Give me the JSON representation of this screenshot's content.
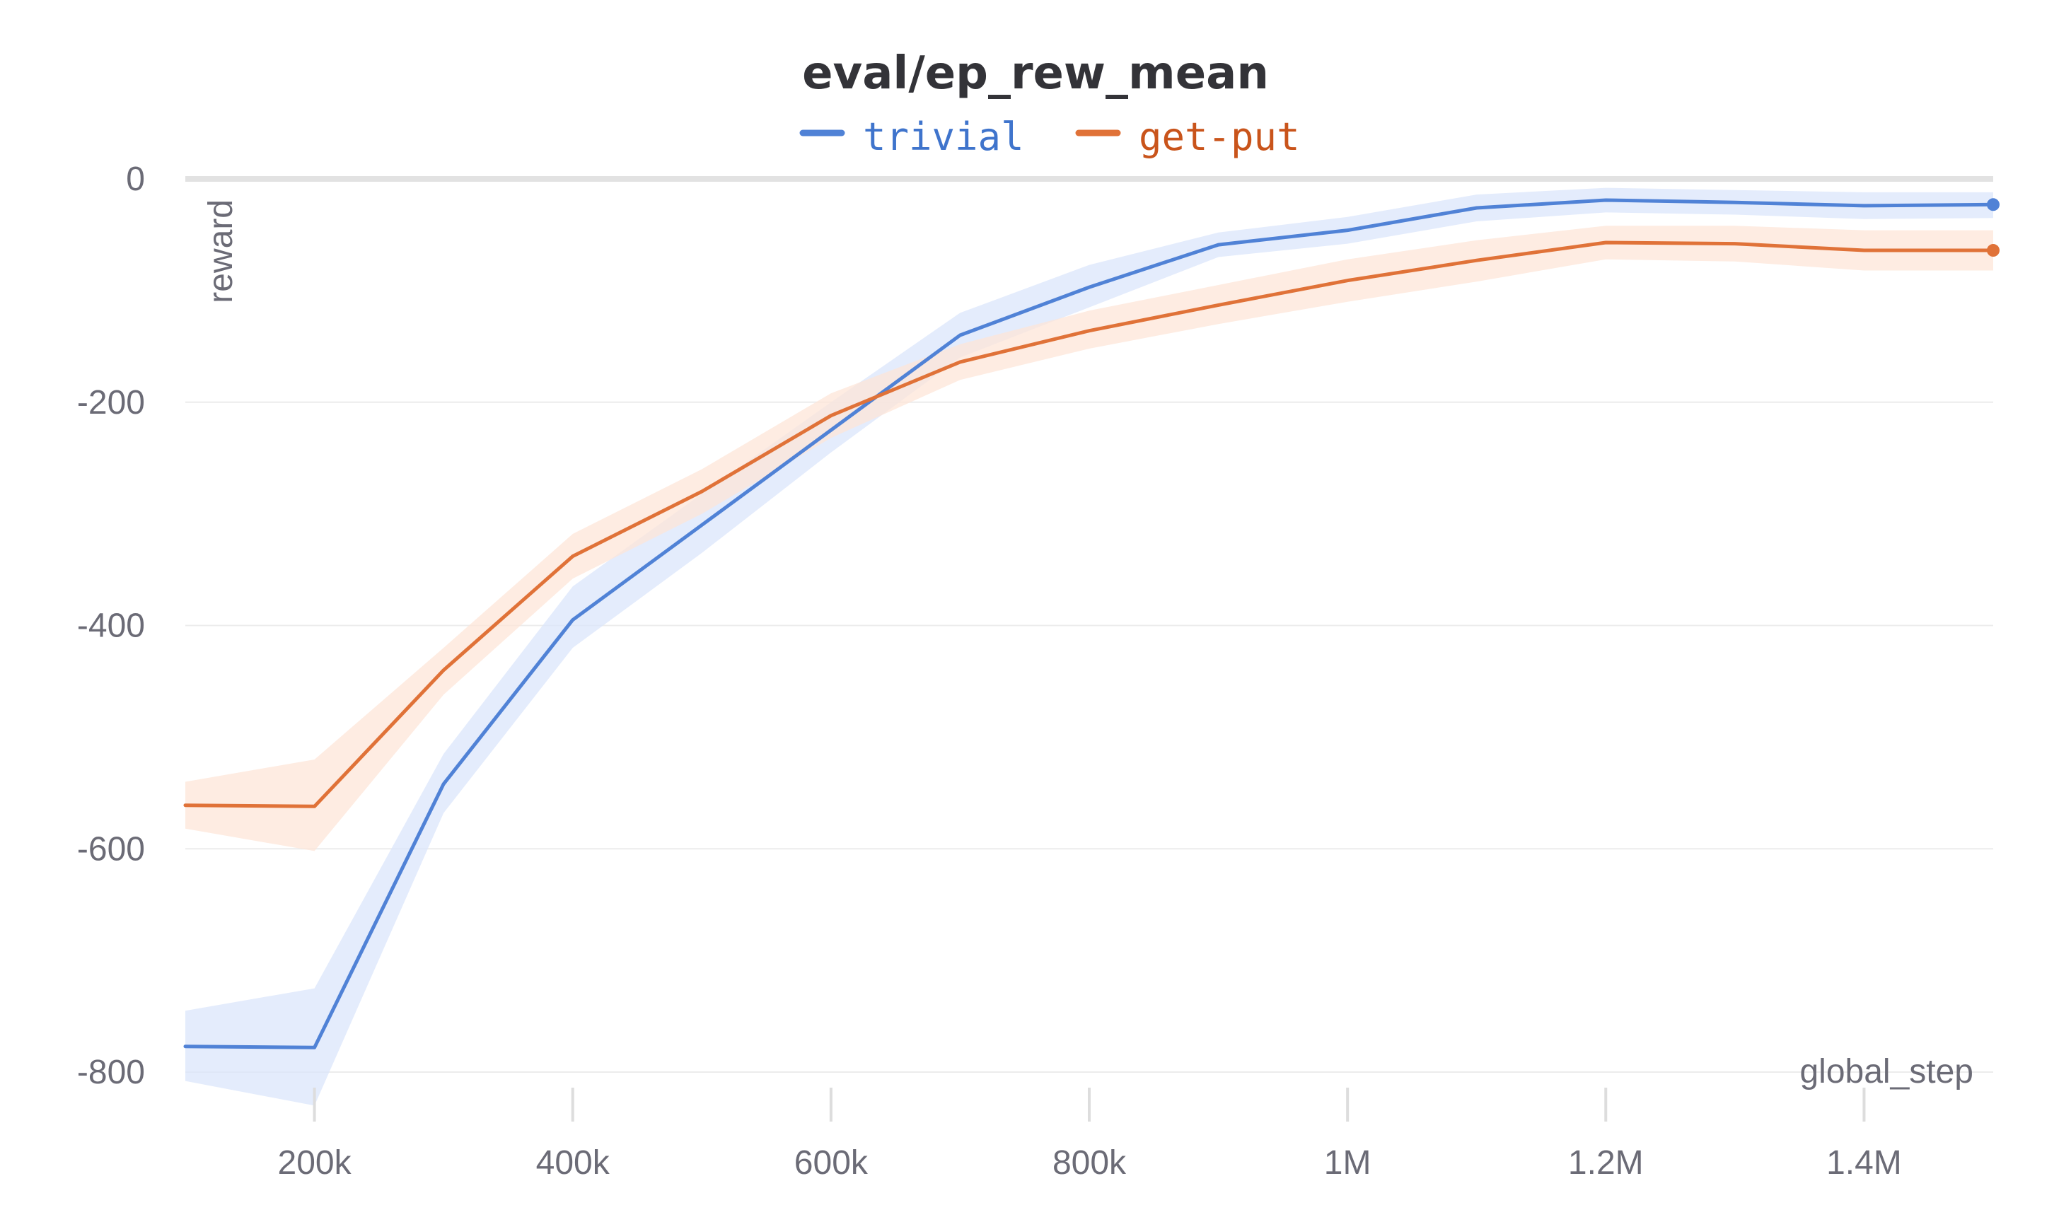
{
  "chart_data": {
    "type": "line",
    "title": "eval/ep_rew_mean",
    "xlabel": "global_step",
    "ylabel": "reward",
    "xlim": [
      100000,
      1500000
    ],
    "ylim": [
      -800,
      0
    ],
    "x_ticks": [
      {
        "value": 200000,
        "label": "200k"
      },
      {
        "value": 400000,
        "label": "400k"
      },
      {
        "value": 600000,
        "label": "600k"
      },
      {
        "value": 800000,
        "label": "800k"
      },
      {
        "value": 1000000,
        "label": "1M"
      },
      {
        "value": 1200000,
        "label": "1.2M"
      },
      {
        "value": 1400000,
        "label": "1.4M"
      }
    ],
    "y_ticks": [
      {
        "value": 0,
        "label": "0"
      },
      {
        "value": -200,
        "label": "-200"
      },
      {
        "value": -400,
        "label": "-400"
      },
      {
        "value": -600,
        "label": "-600"
      },
      {
        "value": -800,
        "label": "-800"
      }
    ],
    "grid": true,
    "legend_position": "top-center",
    "x": [
      100000,
      200000,
      300000,
      400000,
      500000,
      600000,
      700000,
      800000,
      900000,
      1000000,
      1100000,
      1200000,
      1300000,
      1400000,
      1500000
    ],
    "series": [
      {
        "name": "trivial",
        "color": "#5082d6",
        "band_color": "#dbe6fb",
        "values": [
          -777,
          -778,
          -542,
          -395,
          -310,
          -225,
          -140,
          -97,
          -59,
          -46,
          -26,
          -19,
          -21,
          -24,
          -23
        ],
        "upper": [
          -745,
          -725,
          -515,
          -365,
          -282,
          -200,
          -120,
          -77,
          -48,
          -34,
          -14,
          -8,
          -10,
          -12,
          -12
        ],
        "lower": [
          -808,
          -830,
          -568,
          -420,
          -335,
          -245,
          -160,
          -115,
          -70,
          -58,
          -38,
          -30,
          -32,
          -36,
          -35
        ]
      },
      {
        "name": "get-put",
        "color": "#e07238",
        "band_color": "#fde5d8",
        "values": [
          -561,
          -562,
          -440,
          -338,
          -280,
          -212,
          -164,
          -136,
          -113,
          -91,
          -73,
          -57,
          -58,
          -64,
          -64
        ],
        "upper": [
          -540,
          -520,
          -420,
          -318,
          -260,
          -192,
          -148,
          -118,
          -95,
          -72,
          -55,
          -42,
          -42,
          -46,
          -46
        ],
        "lower": [
          -582,
          -602,
          -462,
          -358,
          -300,
          -232,
          -180,
          -152,
          -130,
          -110,
          -92,
          -72,
          -74,
          -82,
          -82
        ]
      }
    ]
  }
}
